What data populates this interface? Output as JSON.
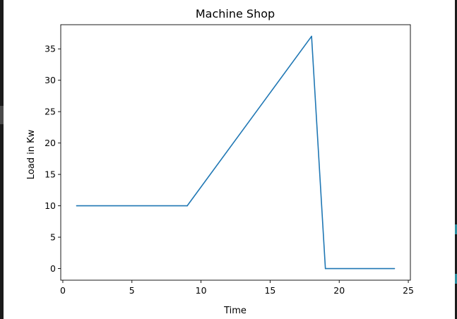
{
  "chart_data": {
    "type": "line",
    "title": "Machine Shop",
    "xlabel": "Time",
    "ylabel": "Load in Kw",
    "xlim": [
      -0.15,
      25.15
    ],
    "ylim": [
      -1.85,
      38.85
    ],
    "x_ticks": [
      0,
      5,
      10,
      15,
      20,
      25
    ],
    "y_ticks": [
      0,
      5,
      10,
      15,
      20,
      25,
      30,
      35
    ],
    "grid": false,
    "series": [
      {
        "color": "#1f77b4",
        "x": [
          1,
          9,
          18,
          19,
          24
        ],
        "y": [
          10,
          10,
          37,
          0,
          0
        ]
      }
    ]
  }
}
